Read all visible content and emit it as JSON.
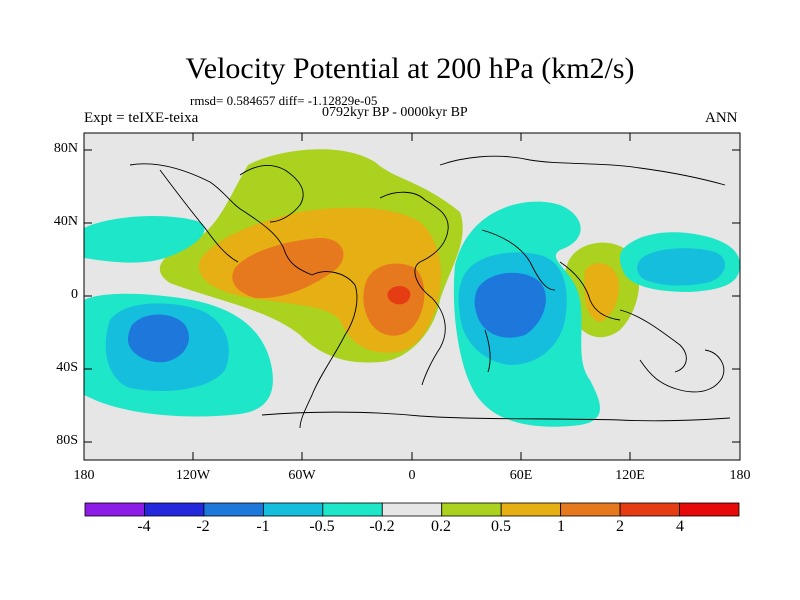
{
  "title": "Velocity Potential at 200 hPa (km2/s)",
  "stats": "rmsd= 0.584657 diff= -1.12829e-05",
  "experiment": "Expt = teIXE-teixa",
  "period": "0792kyr BP - 0000kyr BP",
  "season": "ANN",
  "lat_labels": [
    "80N",
    "40N",
    "0",
    "40S",
    "80S"
  ],
  "lon_labels": [
    "180",
    "120W",
    "60W",
    "0",
    "60E",
    "120E",
    "180"
  ],
  "colorbar": {
    "labels": [
      "-4",
      "-2",
      "-1",
      "-0.5",
      "-0.2",
      "0.2",
      "0.5",
      "1",
      "2",
      "4"
    ],
    "colors": [
      "#8c1ce6",
      "#2328dc",
      "#1e78dc",
      "#14bedc",
      "#1ee6c8",
      "#e6e6e6",
      "#aad21e",
      "#e6af14",
      "#e6781e",
      "#e63c14",
      "#e60a0a"
    ]
  },
  "anomaly_centers": [
    {
      "region": "South Pacific",
      "sign": "negative",
      "level": "-2"
    },
    {
      "region": "Indian Ocean",
      "sign": "negative",
      "level": "-2"
    },
    {
      "region": "Tropical Atlantic",
      "sign": "positive",
      "level": "4"
    },
    {
      "region": "Caribbean",
      "sign": "positive",
      "level": "2"
    },
    {
      "region": "Maritime Continent",
      "sign": "positive",
      "level": "1"
    }
  ]
}
